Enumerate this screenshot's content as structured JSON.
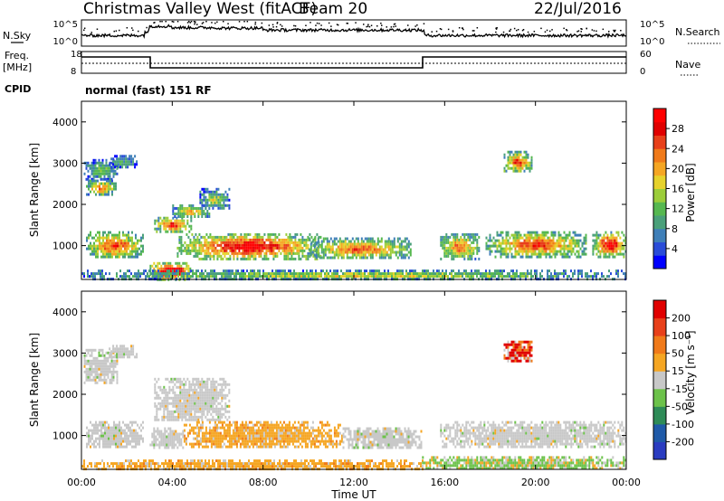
{
  "header": {
    "title": "Christmas Valley West (fitACF)",
    "beam": "Beam 20",
    "date": "22/Jul/2016"
  },
  "top_panels": {
    "nsky_label": "N.Sky",
    "nsky_ticks": [
      "10^5",
      "10^0"
    ],
    "nsearch_label": "N.Search",
    "nsearch_ticks": [
      "10^5",
      "10^0"
    ],
    "freq_label_1": "Freq.",
    "freq_label_2": "[MHz]",
    "freq_ticks": [
      "18",
      "8"
    ],
    "nave_label": "Nave",
    "nave_ticks": [
      "60",
      "0"
    ],
    "cpid_label": "CPID",
    "cpid_value": "normal (fast) 151 RF"
  },
  "x_axis": {
    "label": "Time UT",
    "ticks": [
      "00:00",
      "04:00",
      "08:00",
      "12:00",
      "16:00",
      "20:00",
      "00:00"
    ]
  },
  "chart_data": [
    {
      "type": "heatmap",
      "name": "power",
      "ylabel": "Slant Range [km]",
      "yticks": [
        "1000",
        "2000",
        "3000",
        "4000"
      ],
      "ylim": [
        180,
        4500
      ],
      "xlim_hours": [
        0,
        24
      ],
      "colorbar": {
        "label": "Power [dB]",
        "ticks": [
          "4",
          "8",
          "12",
          "16",
          "20",
          "24",
          "28"
        ],
        "colors": [
          "#0000ff",
          "#2a4cd8",
          "#3f7fb8",
          "#4aa07a",
          "#56b850",
          "#9ccd3a",
          "#e6d22c",
          "#f5a623",
          "#f07a1a",
          "#e8401a",
          "#e00000",
          "#ff0000"
        ]
      },
      "regions": [
        {
          "t": [
            0.1,
            1.6
          ],
          "r": [
            2600,
            3100
          ],
          "level": 0.3
        },
        {
          "t": [
            0.2,
            1.5
          ],
          "r": [
            2250,
            2600
          ],
          "level": 0.55
        },
        {
          "t": [
            1.2,
            2.4
          ],
          "r": [
            2900,
            3200
          ],
          "level": 0.25
        },
        {
          "t": [
            0.2,
            2.7
          ],
          "r": [
            700,
            1350
          ],
          "level": 0.6
        },
        {
          "t": [
            3.2,
            4.8
          ],
          "r": [
            1350,
            1700
          ],
          "level": 0.65
        },
        {
          "t": [
            4.0,
            5.6
          ],
          "r": [
            1700,
            2000
          ],
          "level": 0.45
        },
        {
          "t": [
            5.2,
            6.5
          ],
          "r": [
            1900,
            2400
          ],
          "level": 0.35
        },
        {
          "t": [
            4.2,
            10.5
          ],
          "r": [
            700,
            1300
          ],
          "level": 0.7
        },
        {
          "t": [
            3.0,
            4.8
          ],
          "r": [
            200,
            600
          ],
          "level": 0.85
        },
        {
          "t": [
            10.0,
            14.5
          ],
          "r": [
            700,
            1200
          ],
          "level": 0.55
        },
        {
          "t": [
            15.8,
            17.5
          ],
          "r": [
            700,
            1300
          ],
          "level": 0.55
        },
        {
          "t": [
            17.8,
            22.2
          ],
          "r": [
            750,
            1350
          ],
          "level": 0.6
        },
        {
          "t": [
            22.5,
            24.0
          ],
          "r": [
            750,
            1350
          ],
          "level": 0.7
        },
        {
          "t": [
            18.6,
            19.8
          ],
          "r": [
            2800,
            3300
          ],
          "level": 0.6
        },
        {
          "t": [
            0.0,
            24.0
          ],
          "r": [
            200,
            420
          ],
          "level": 0.4
        }
      ]
    },
    {
      "type": "heatmap",
      "name": "velocity",
      "ylabel": "Slant Range [km]",
      "yticks": [
        "1000",
        "2000",
        "3000",
        "4000"
      ],
      "ylim": [
        180,
        4500
      ],
      "xlim_hours": [
        0,
        24
      ],
      "colorbar": {
        "label": "Velocity [m s⁻¹]",
        "ticks": [
          "200",
          "100",
          "50",
          "15",
          "-15",
          "-50",
          "-100",
          "-200"
        ],
        "colors": [
          "#2a3cc0",
          "#1f5aa8",
          "#2e8b57",
          "#6cc24a",
          "#c8c8c8",
          "#f5a623",
          "#f07a1a",
          "#e8401a",
          "#e00000"
        ]
      },
      "regions": [
        {
          "t": [
            0.1,
            1.6
          ],
          "r": [
            2250,
            3100
          ],
          "kind": "gray"
        },
        {
          "t": [
            1.2,
            2.4
          ],
          "r": [
            2900,
            3200
          ],
          "kind": "gray"
        },
        {
          "t": [
            0.2,
            2.7
          ],
          "r": [
            700,
            1350
          ],
          "kind": "gray"
        },
        {
          "t": [
            3.2,
            6.5
          ],
          "r": [
            1350,
            2400
          ],
          "kind": "gray"
        },
        {
          "t": [
            4.5,
            11.5
          ],
          "r": [
            700,
            1350
          ],
          "kind": "orange"
        },
        {
          "t": [
            3.0,
            4.5
          ],
          "r": [
            700,
            1200
          ],
          "kind": "gray"
        },
        {
          "t": [
            11.5,
            15.0
          ],
          "r": [
            700,
            1200
          ],
          "kind": "gray"
        },
        {
          "t": [
            15.8,
            24.0
          ],
          "r": [
            750,
            1350
          ],
          "kind": "gray"
        },
        {
          "t": [
            18.6,
            19.8
          ],
          "r": [
            2800,
            3300
          ],
          "kind": "red"
        },
        {
          "t": [
            0.0,
            15.0
          ],
          "r": [
            200,
            420
          ],
          "kind": "orange"
        },
        {
          "t": [
            15.0,
            24.0
          ],
          "r": [
            200,
            500
          ],
          "kind": "green"
        }
      ]
    }
  ]
}
